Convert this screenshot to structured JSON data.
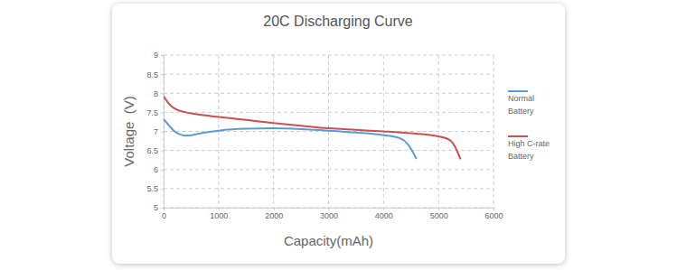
{
  "chart_data": {
    "type": "line",
    "title": "20C Discharging Curve",
    "x_label": "Capacity(mAh)",
    "y_label": "Voltage  (V)",
    "xlim": [
      0,
      6000
    ],
    "xticks": [
      0,
      1000,
      2000,
      3000,
      4000,
      5000,
      6000
    ],
    "ylim": [
      5,
      9
    ],
    "yticks": [
      5,
      5.5,
      6,
      6.5,
      7,
      7.5,
      8,
      8.5,
      9
    ],
    "grid": true,
    "legend": "right",
    "series": [
      {
        "name": "Normal Battery",
        "color": "#5b9bd5",
        "x": [
          0,
          100,
          200,
          300,
          400,
          500,
          700,
          1000,
          1500,
          2000,
          2500,
          3000,
          3500,
          4000,
          4300,
          4450,
          4600
        ],
        "values": [
          7.32,
          7.15,
          7.0,
          6.92,
          6.89,
          6.9,
          6.96,
          7.02,
          7.07,
          7.08,
          7.06,
          7.02,
          6.97,
          6.9,
          6.82,
          6.65,
          6.28
        ]
      },
      {
        "name": "High C-rate Battery",
        "color": "#c9504f",
        "x": [
          0,
          100,
          200,
          400,
          600,
          1000,
          1500,
          2000,
          2500,
          3000,
          3500,
          4000,
          4500,
          5000,
          5200,
          5300,
          5400
        ],
        "values": [
          7.92,
          7.72,
          7.6,
          7.5,
          7.45,
          7.38,
          7.3,
          7.22,
          7.15,
          7.08,
          7.04,
          7.0,
          6.95,
          6.87,
          6.78,
          6.6,
          6.27
        ]
      }
    ]
  }
}
